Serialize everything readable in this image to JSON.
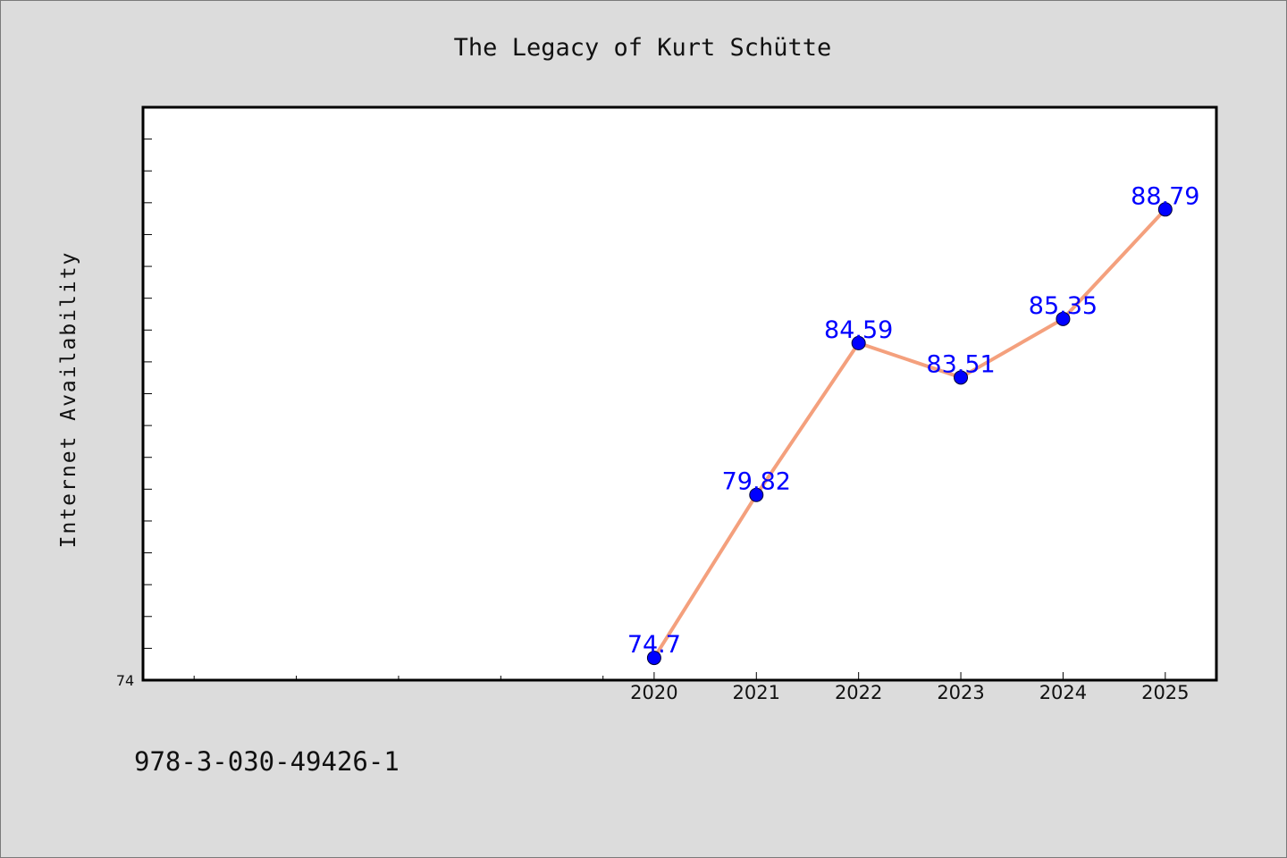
{
  "chart_data": {
    "type": "line",
    "title": "The Legacy of Kurt Schütte",
    "xlabel": "",
    "ylabel": "Internet Availability",
    "x": [
      "2020",
      "2021",
      "2022",
      "2023",
      "2024",
      "2025"
    ],
    "values": [
      74.7,
      79.82,
      84.59,
      83.51,
      85.35,
      88.79
    ],
    "data_labels": [
      "74.7",
      "79.82",
      "84.59",
      "83.51",
      "85.35",
      "88.79"
    ],
    "y_tick_label": "74",
    "ylim": [
      74,
      92
    ],
    "x_tick_positions": [
      2015.5,
      2016.5,
      2017.5,
      2018.5,
      2019.5,
      2020,
      2021,
      2022,
      2023,
      2024,
      2025
    ],
    "xlim": [
      2015,
      2025.5
    ],
    "grid": false,
    "colors": {
      "line": "#f4a07d",
      "marker": "#0000ff",
      "data_label": "#0000ff",
      "background": "#dcdcdc",
      "plot_background": "#ffffff"
    }
  },
  "footer": {
    "isbn": "978-3-030-49426-1"
  }
}
